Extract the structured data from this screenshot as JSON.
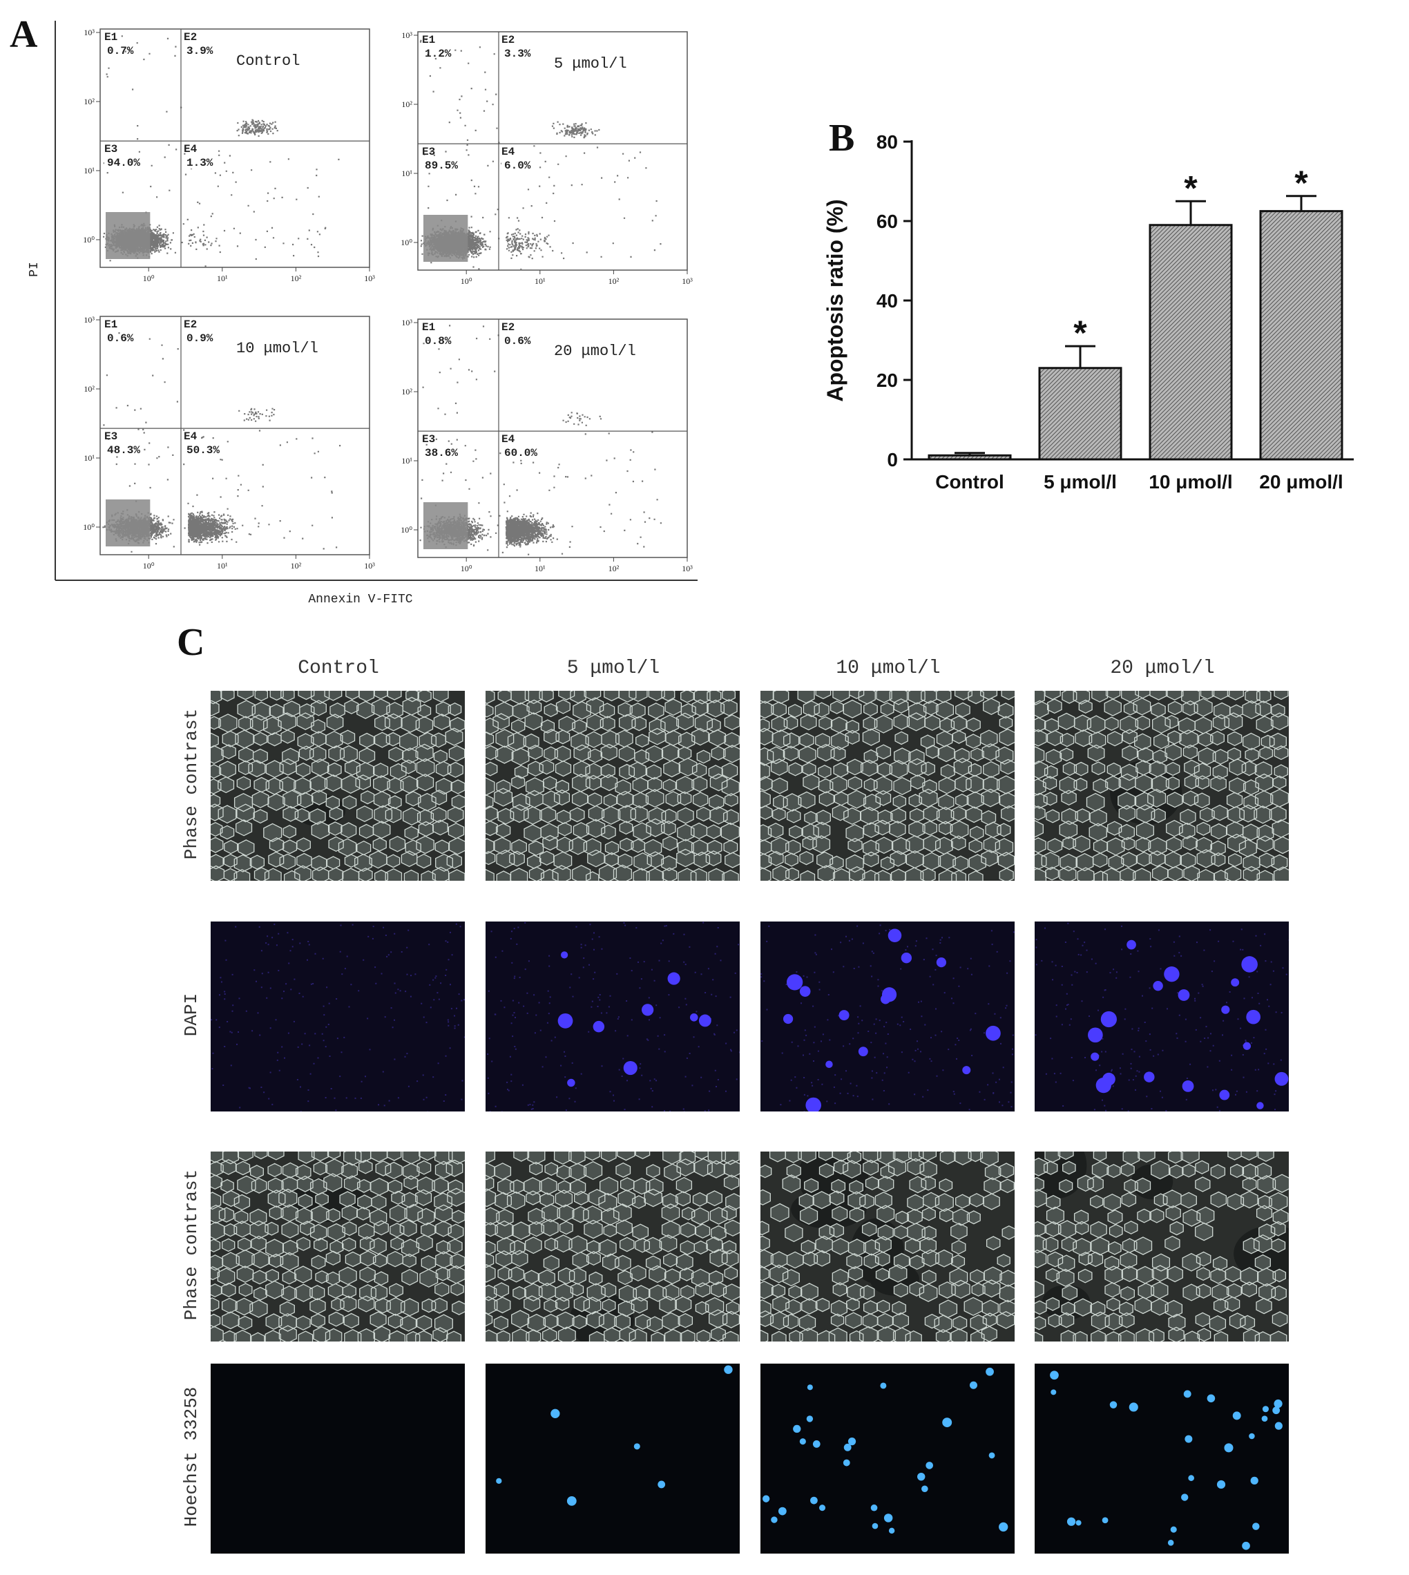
{
  "panel_labels": {
    "a": "A",
    "b": "B",
    "c": "C"
  },
  "colors": {
    "bar_fill": "#b9b9b9",
    "bar_stroke": "#111111",
    "dot": "#777777",
    "dapi": "#4a3cff",
    "hoechst": "#4fb6ff"
  },
  "chart_data": [
    {
      "type": "scatter",
      "panel": "A",
      "xlabel": "Annexin V-FITC",
      "ylabel": "PI",
      "scale": "log",
      "x_ticks": [
        "10⁰",
        "10¹",
        "10²",
        "10³"
      ],
      "y_ticks": [
        "10⁰",
        "10¹",
        "10²",
        "10³"
      ],
      "plots": [
        {
          "condition": "Control",
          "quadrants": {
            "E1": "0.7%",
            "E2": "3.9%",
            "E3": "94.0%",
            "E4": "1.3%"
          }
        },
        {
          "condition": "5 μmol/l",
          "quadrants": {
            "E1": "1.2%",
            "E2": "3.3%",
            "E3": "89.5%",
            "E4": "6.0%"
          }
        },
        {
          "condition": "10 μmol/l",
          "quadrants": {
            "E1": "0.6%",
            "E2": "0.9%",
            "E3": "48.3%",
            "E4": "50.3%"
          }
        },
        {
          "condition": "20 μmol/l",
          "quadrants": {
            "E1": "0.8%",
            "E2": "0.6%",
            "E3": "38.6%",
            "E4": "60.0%"
          }
        }
      ]
    },
    {
      "type": "bar",
      "panel": "B",
      "categories": [
        "Control",
        "5 μmol/l",
        "10 μmol/l",
        "20 μmol/l"
      ],
      "values": [
        1,
        23,
        59,
        62.5
      ],
      "errors": [
        0.6,
        5.5,
        6,
        3.8
      ],
      "significance": [
        "",
        "*",
        "*",
        "*"
      ],
      "ylabel": "Apoptosis ratio (%)",
      "ylim": [
        0,
        80
      ],
      "yticks": [
        0,
        20,
        40,
        60,
        80
      ]
    }
  ],
  "microscopy": {
    "columns": [
      "Control",
      "5 μmol/l",
      "10 μmol/l",
      "20 μmol/l"
    ],
    "rows": [
      {
        "label": "Phase contrast",
        "kind": "phase",
        "density": [
          0.95,
          0.98,
          0.97,
          0.9
        ]
      },
      {
        "label": "DAPI",
        "kind": "dapi",
        "positive_cells": [
          0,
          9,
          14,
          20
        ]
      },
      {
        "label": "Phase contrast",
        "kind": "phase",
        "density": [
          0.95,
          0.92,
          0.75,
          0.7
        ]
      },
      {
        "label": "Hoechst 33258",
        "kind": "hoechst",
        "positive_cells": [
          0,
          6,
          26,
          26
        ]
      }
    ]
  }
}
